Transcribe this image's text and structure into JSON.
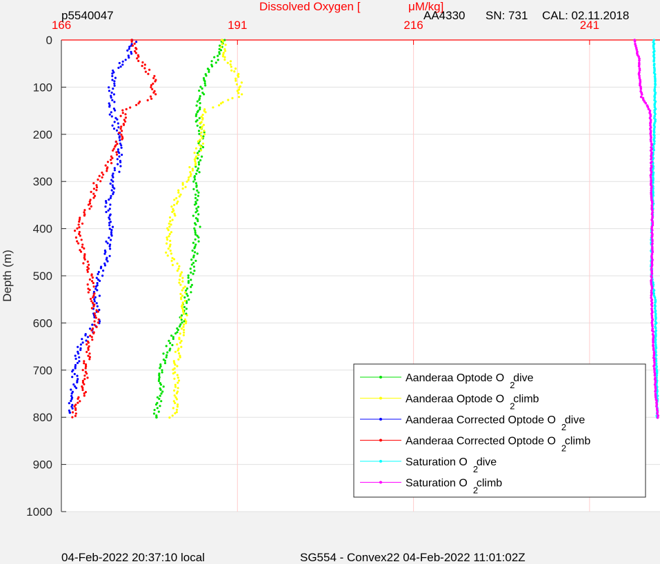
{
  "header": {
    "left": "p5540047",
    "title_prefix": "Dissolved Oxygen [",
    "title_unit": "μM/kg]",
    "instrument": "AA4330",
    "serial": "SN: 731",
    "calibration": "CAL: 02.11.2018"
  },
  "footer": {
    "left": "04-Feb-2022 20:37:10 local",
    "center": "SG554 - Convex22 04-Feb-2022 11:01:02Z"
  },
  "colors": {
    "background": "#f2f2f2",
    "axis_top": "#ff0000",
    "grid_x": "#ffcccc",
    "grid_y": "#e0e0e0",
    "green": "#00e000",
    "yellow": "#ffff00",
    "blue": "#0000ff",
    "red": "#ff0000",
    "cyan": "#00ffff",
    "magenta": "#ff00ff"
  },
  "chart_data": {
    "type": "scatter",
    "xlabel": "Dissolved Oxygen [μM/kg]",
    "ylabel": "Depth (m)",
    "xlim": [
      166,
      251
    ],
    "ylim": [
      0,
      1000
    ],
    "y_reversed": true,
    "x_ticks": [
      166,
      191,
      216,
      241
    ],
    "y_ticks": [
      0,
      100,
      200,
      300,
      400,
      500,
      600,
      700,
      800,
      900,
      1000
    ],
    "grid": true,
    "legend_position": "bottom-right",
    "series": [
      {
        "name": "Aanderaa Optode O",
        "sub": "2",
        "suffix": " dive",
        "color": "#00e000",
        "points": [
          [
            189.2,
            0
          ],
          [
            188.3,
            30
          ],
          [
            187.1,
            60
          ],
          [
            186.1,
            100
          ],
          [
            185.2,
            150
          ],
          [
            186.0,
            200
          ],
          [
            185.6,
            260
          ],
          [
            185.2,
            300
          ],
          [
            185.0,
            350
          ],
          [
            185.3,
            400
          ],
          [
            185.0,
            450
          ],
          [
            184.4,
            500
          ],
          [
            183.8,
            550
          ],
          [
            183.1,
            600
          ],
          [
            181.2,
            650
          ],
          [
            180.3,
            700
          ],
          [
            180.1,
            750
          ],
          [
            179.5,
            800
          ]
        ]
      },
      {
        "name": "Aanderaa Optode O",
        "sub": "2",
        "suffix": " climb",
        "color": "#ffff00",
        "points": [
          [
            181.8,
            800
          ],
          [
            182.5,
            750
          ],
          [
            182.3,
            700
          ],
          [
            182.6,
            650
          ],
          [
            183.4,
            600
          ],
          [
            183.4,
            550
          ],
          [
            183.0,
            500
          ],
          [
            181.2,
            450
          ],
          [
            181.4,
            400
          ],
          [
            182.0,
            350
          ],
          [
            183.7,
            300
          ],
          [
            185.1,
            250
          ],
          [
            186.1,
            200
          ],
          [
            186.1,
            150
          ],
          [
            191.2,
            120
          ],
          [
            191.3,
            90
          ],
          [
            190.4,
            60
          ],
          [
            189.0,
            30
          ],
          [
            188.8,
            0
          ]
        ]
      },
      {
        "name": "Aanderaa Corrected Optode O",
        "sub": "2",
        "suffix": " dive",
        "color": "#0000ff",
        "points": [
          [
            176.5,
            0
          ],
          [
            175.6,
            30
          ],
          [
            173.8,
            60
          ],
          [
            173.1,
            100
          ],
          [
            173.2,
            150
          ],
          [
            174.0,
            200
          ],
          [
            174.3,
            260
          ],
          [
            173.3,
            300
          ],
          [
            172.6,
            350
          ],
          [
            172.9,
            400
          ],
          [
            172.6,
            450
          ],
          [
            171.5,
            500
          ],
          [
            170.9,
            550
          ],
          [
            171.0,
            600
          ],
          [
            168.6,
            650
          ],
          [
            168.0,
            700
          ],
          [
            167.7,
            750
          ],
          [
            167.2,
            790
          ]
        ]
      },
      {
        "name": "Aanderaa Corrected Optode O",
        "sub": "2",
        "suffix": " climb",
        "color": "#ff0000",
        "points": [
          [
            167.6,
            800
          ],
          [
            169.0,
            750
          ],
          [
            169.4,
            700
          ],
          [
            169.8,
            650
          ],
          [
            171.1,
            600
          ],
          [
            170.4,
            550
          ],
          [
            170.0,
            500
          ],
          [
            169.0,
            450
          ],
          [
            168.2,
            400
          ],
          [
            170.0,
            350
          ],
          [
            171.1,
            300
          ],
          [
            173.3,
            250
          ],
          [
            174.5,
            200
          ],
          [
            175.0,
            150
          ],
          [
            179.0,
            120
          ],
          [
            179.0,
            80
          ],
          [
            177.0,
            40
          ],
          [
            176.0,
            0
          ]
        ]
      },
      {
        "name": "Saturation O",
        "sub": "2",
        "suffix": " dive",
        "color": "#00ffff",
        "points": [
          [
            250.1,
            0
          ],
          [
            250.2,
            50
          ],
          [
            250.3,
            100
          ],
          [
            250.3,
            150
          ],
          [
            250.2,
            200
          ],
          [
            250.0,
            250
          ],
          [
            250.0,
            300
          ],
          [
            250.0,
            350
          ],
          [
            249.8,
            400
          ],
          [
            249.8,
            450
          ],
          [
            249.8,
            500
          ],
          [
            250.3,
            550
          ],
          [
            250.4,
            600
          ],
          [
            250.4,
            650
          ],
          [
            250.5,
            700
          ],
          [
            250.6,
            750
          ],
          [
            250.6,
            800
          ]
        ]
      },
      {
        "name": "Saturation O",
        "sub": "2",
        "suffix": " climb",
        "color": "#ff00ff",
        "points": [
          [
            250.7,
            800
          ],
          [
            250.4,
            750
          ],
          [
            250.2,
            700
          ],
          [
            250.1,
            650
          ],
          [
            249.9,
            600
          ],
          [
            249.8,
            550
          ],
          [
            249.8,
            500
          ],
          [
            249.9,
            450
          ],
          [
            249.9,
            400
          ],
          [
            249.9,
            350
          ],
          [
            249.7,
            300
          ],
          [
            249.8,
            250
          ],
          [
            249.7,
            200
          ],
          [
            249.6,
            150
          ],
          [
            248.4,
            120
          ],
          [
            248.1,
            80
          ],
          [
            248.0,
            40
          ],
          [
            247.4,
            0
          ]
        ]
      }
    ]
  }
}
